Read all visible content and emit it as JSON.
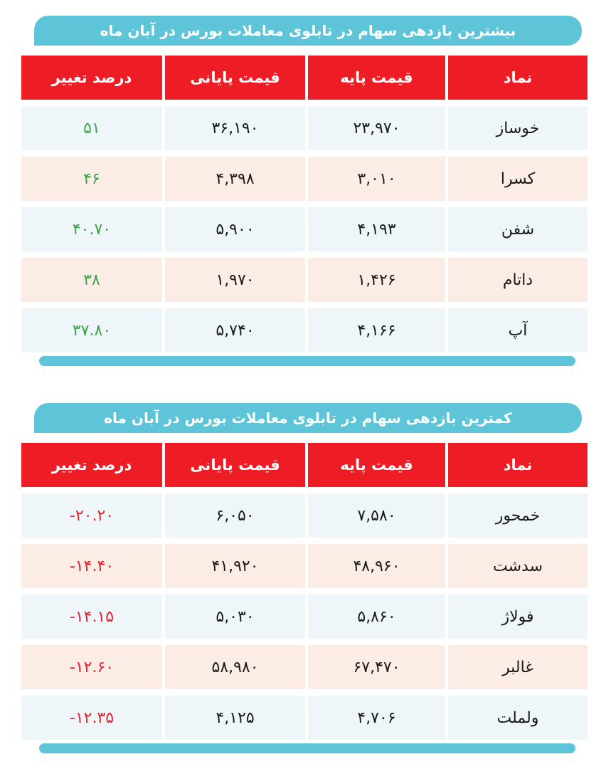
{
  "top_table": {
    "title": "بیشترین بازدهی سهام در تابلوی معاملات بورس در آبان ماه",
    "headers": [
      "نماد",
      "قیمت پایه",
      "قیمت پایانی",
      "درصد تغییر"
    ],
    "rows": [
      {
        "symbol": "خوساز",
        "base": "۲۳,۹۷۰",
        "close": "۳۶,۱۹۰",
        "change": "۵۱"
      },
      {
        "symbol": "کسرا",
        "base": "۳,۰۱۰",
        "close": "۴,۳۹۸",
        "change": "۴۶"
      },
      {
        "symbol": "شفن",
        "base": "۴,۱۹۳",
        "close": "۵,۹۰۰",
        "change": "۴۰.۷۰"
      },
      {
        "symbol": "داتام",
        "base": "۱,۴۲۶",
        "close": "۱,۹۷۰",
        "change": "۳۸"
      },
      {
        "symbol": "آپ",
        "base": "۴,۱۶۶",
        "close": "۵,۷۴۰",
        "change": "۳۷.۸۰"
      }
    ]
  },
  "bottom_table": {
    "title": "کمترین بازدهی سهام در تابلوی معاملات بورس در آبان ماه",
    "headers": [
      "نماد",
      "قیمت پایه",
      "قیمت پایانی",
      "درصد تغییر"
    ],
    "rows": [
      {
        "symbol": "خمحور",
        "base": "۷,۵۸۰",
        "close": "۶,۰۵۰",
        "change": "-۲۰.۲۰"
      },
      {
        "symbol": "سدشت",
        "base": "۴۸,۹۶۰",
        "close": "۴۱,۹۲۰",
        "change": "-۱۴.۴۰"
      },
      {
        "symbol": "فولاژ",
        "base": "۵,۸۶۰",
        "close": "۵,۰۳۰",
        "change": "-۱۴.۱۵"
      },
      {
        "symbol": "غالبر",
        "base": "۶۷,۴۷۰",
        "close": "۵۸,۹۸۰",
        "change": "-۱۲.۶۰"
      },
      {
        "symbol": "ولملت",
        "base": "۴,۷۰۶",
        "close": "۴,۱۲۵",
        "change": "-۱۲.۳۵"
      }
    ]
  },
  "colors": {
    "title_bar": "#5ec5d8",
    "header": "#ee1c25",
    "row_blue": "#eef6f9",
    "row_pink": "#fcece6",
    "positive": "#3aa347",
    "negative": "#e5232d"
  }
}
